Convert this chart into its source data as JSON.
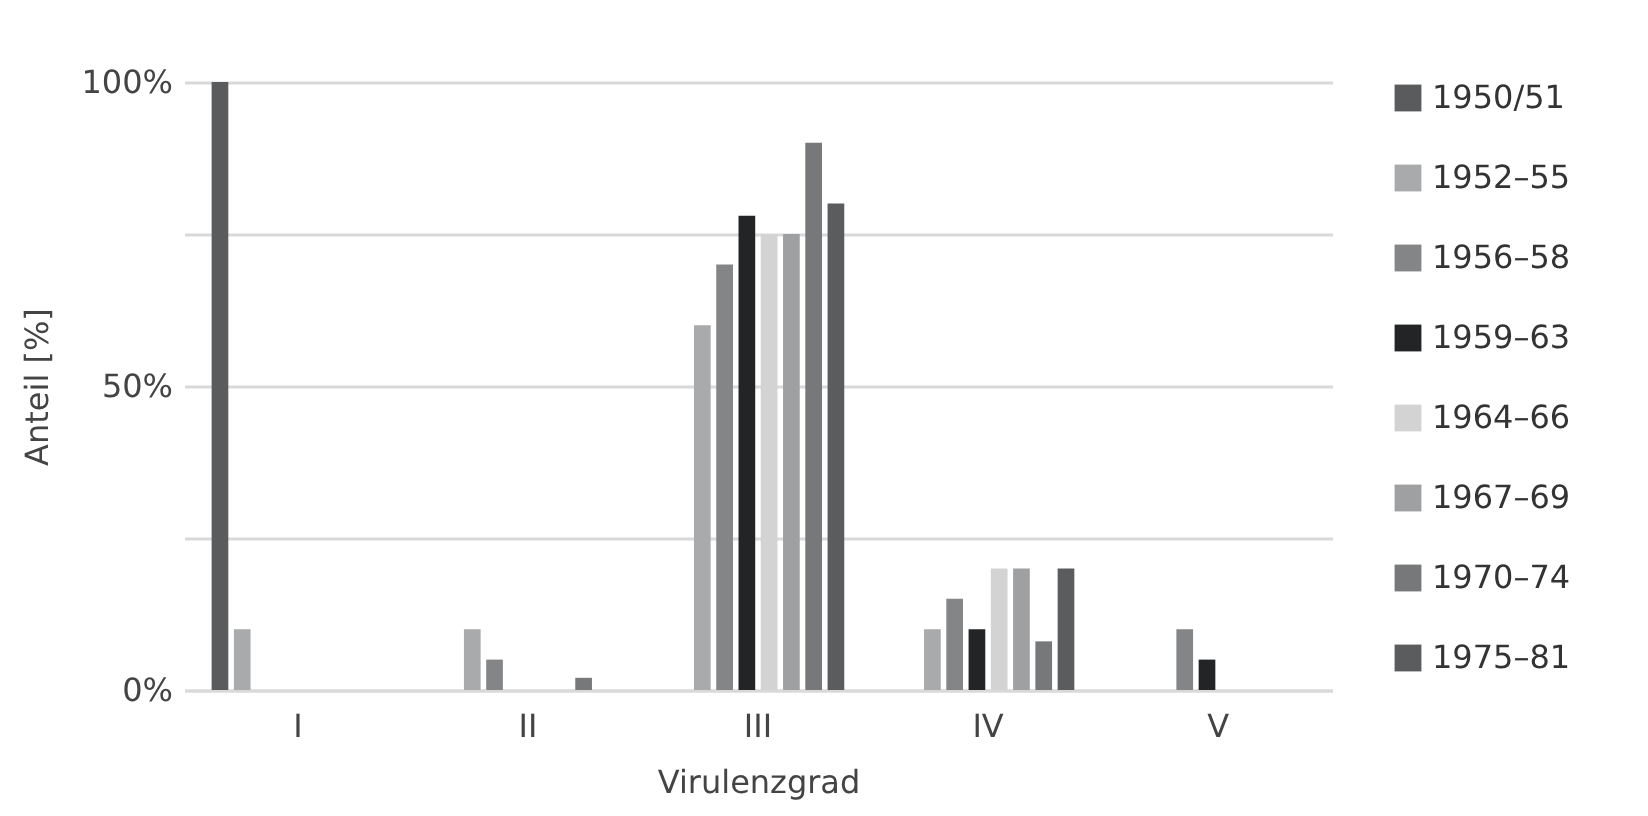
{
  "chart_data": {
    "type": "bar",
    "xlabel": "Virulenzgrad",
    "ylabel": "Anteil [%]",
    "categories": [
      "I",
      "II",
      "III",
      "IV",
      "V"
    ],
    "series": [
      {
        "name": "1950/51",
        "color": "#5a5b5d",
        "values": [
          100,
          0,
          0,
          0,
          0
        ]
      },
      {
        "name": "1952–55",
        "color": "#a9aaab",
        "values": [
          10,
          10,
          60,
          10,
          0
        ]
      },
      {
        "name": "1956–58",
        "color": "#848587",
        "values": [
          0,
          5,
          70,
          15,
          10
        ]
      },
      {
        "name": "1959–63",
        "color": "#222426",
        "values": [
          0,
          0,
          78,
          10,
          5
        ]
      },
      {
        "name": "1964–66",
        "color": "#d3d3d3",
        "values": [
          0,
          0,
          75,
          20,
          0
        ]
      },
      {
        "name": "1967–69",
        "color": "#9fa0a1",
        "values": [
          0,
          0,
          75,
          20,
          0
        ]
      },
      {
        "name": "1970–74",
        "color": "#77787a",
        "values": [
          0,
          2,
          90,
          8,
          0
        ]
      },
      {
        "name": "1975–81",
        "color": "#5b5c5e",
        "values": [
          0,
          0,
          80,
          20,
          0
        ]
      }
    ],
    "ylim": [
      0,
      100
    ],
    "yticks": [
      {
        "value": 0,
        "label": "0%"
      },
      {
        "value": 25,
        "label": null
      },
      {
        "value": 50,
        "label": "50%"
      },
      {
        "value": 75,
        "label": null
      },
      {
        "value": 100,
        "label": "100%"
      }
    ],
    "grid": "y",
    "legend": "right"
  }
}
